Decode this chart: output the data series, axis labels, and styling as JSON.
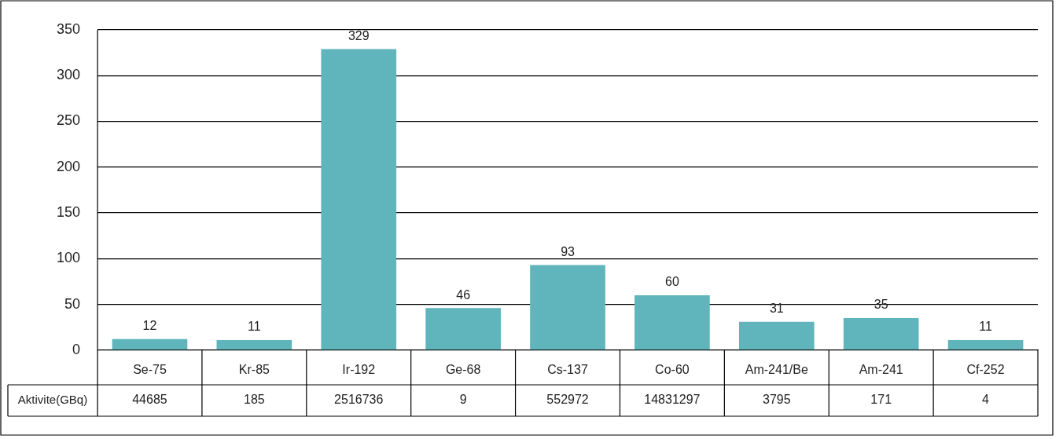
{
  "chart_data": {
    "type": "bar",
    "categories": [
      "Se-75",
      "Kr-85",
      "Ir-192",
      "Ge-68",
      "Cs-137",
      "Co-60",
      "Am-241/Be",
      "Am-241",
      "Cf-252"
    ],
    "values": [
      12,
      11,
      329,
      46,
      93,
      60,
      31,
      35,
      11
    ],
    "color": "#5fb5bb",
    "ylim": [
      0,
      350
    ],
    "yticks": [
      0,
      50,
      100,
      150,
      200,
      250,
      300,
      350
    ],
    "grid": "y",
    "data_labels": true,
    "legend": false,
    "annotations": [
      "Aktivite(GBq)",
      "44685",
      "185",
      "2516736",
      "9",
      "552972",
      "14831297",
      "3795",
      "171",
      "4"
    ]
  }
}
